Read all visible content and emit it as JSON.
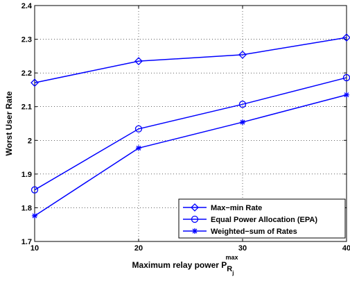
{
  "chart_data": {
    "type": "line",
    "xlabel": "Maximum relay power P",
    "xlabel_sub": "R",
    "xlabel_subsub": "j",
    "xlabel_sup": "max",
    "ylabel": "Worst User Rate",
    "x": [
      10,
      20,
      30,
      40
    ],
    "xlim": [
      10,
      40
    ],
    "ylim": [
      1.7,
      2.4
    ],
    "xticks": [
      10,
      20,
      30,
      40
    ],
    "xtick_labels": [
      "10",
      "20",
      "30",
      "40"
    ],
    "yticks": [
      1.7,
      1.8,
      1.9,
      2.0,
      2.1,
      2.2,
      2.3,
      2.4
    ],
    "ytick_labels": [
      "1.7",
      "1.8",
      "1.9",
      "2",
      "2.1",
      "2.2",
      "2.3",
      "2.4"
    ],
    "grid": true,
    "legend_position": "bottom-right",
    "series": [
      {
        "name": "Max−min Rate",
        "marker": "diamond",
        "color": "#0000ff",
        "values": [
          2.171,
          2.235,
          2.254,
          2.305
        ]
      },
      {
        "name": "Equal Power Allocation (EPA)",
        "marker": "circle",
        "color": "#0000ff",
        "values": [
          1.853,
          2.034,
          2.107,
          2.186
        ]
      },
      {
        "name": "Weighted−sum of Rates",
        "marker": "star",
        "color": "#0000ff",
        "values": [
          1.776,
          1.977,
          2.054,
          2.135
        ]
      }
    ]
  }
}
